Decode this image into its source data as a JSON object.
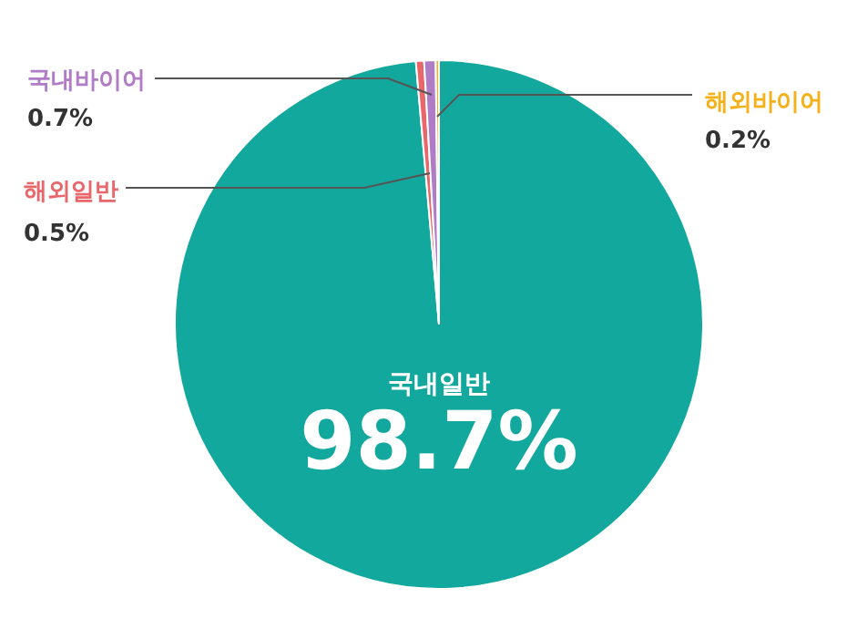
{
  "chart_data": {
    "type": "pie",
    "categories": [
      "국내일반",
      "해외일반",
      "국내바이어",
      "해외바이어"
    ],
    "values": [
      98.7,
      0.5,
      0.7,
      0.2
    ],
    "colors": [
      "#13a89e",
      "#e8676b",
      "#b07cc6",
      "#f5b11a"
    ],
    "value_labels": [
      "98.7%",
      "0.5%",
      "0.7%",
      "0.2%"
    ]
  }
}
